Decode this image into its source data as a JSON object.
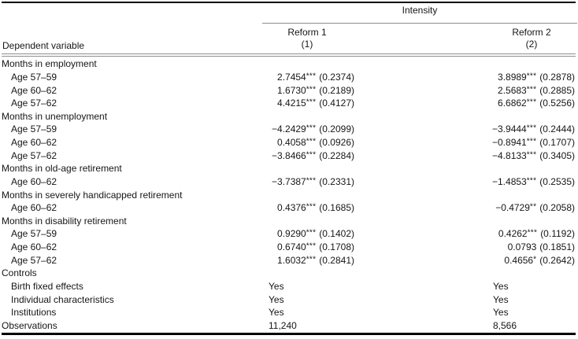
{
  "colors": {
    "rule_dark": "#000000",
    "rule_gray": "#8e8e8e",
    "text": "#161616"
  },
  "header": {
    "intensity_label": "Intensity",
    "dependent_variable_label": "Dependent variable",
    "columns": [
      {
        "name": "Reform 1",
        "number": "(1)"
      },
      {
        "name": "Reform 2",
        "number": "(2)"
      }
    ]
  },
  "rows": [
    {
      "type": "section",
      "label": "Months in employment"
    },
    {
      "type": "data",
      "label": "Age 57–59",
      "r1": {
        "coef": "2.7454",
        "stars": "***",
        "se": "(0.2374)"
      },
      "r2": {
        "coef": "3.8989",
        "stars": "***",
        "se": "(0.2878)"
      }
    },
    {
      "type": "data",
      "label": "Age 60–62",
      "r1": {
        "coef": "1.6730",
        "stars": "***",
        "se": "(0.2189)"
      },
      "r2": {
        "coef": "2.5683",
        "stars": "***",
        "se": "(0.2885)"
      }
    },
    {
      "type": "data",
      "label": "Age 57–62",
      "r1": {
        "coef": "4.4215",
        "stars": "***",
        "se": "(0.4127)"
      },
      "r2": {
        "coef": "6.6862",
        "stars": "***",
        "se": "(0.5256)"
      }
    },
    {
      "type": "section",
      "label": "Months in unemployment"
    },
    {
      "type": "data",
      "label": "Age 57–59",
      "r1": {
        "coef": "−4.2429",
        "stars": "***",
        "se": "(0.2099)"
      },
      "r2": {
        "coef": "−3.9444",
        "stars": "***",
        "se": "(0.2444)"
      }
    },
    {
      "type": "data",
      "label": "Age 60–62",
      "r1": {
        "coef": "0.4058",
        "stars": "***",
        "se": "(0.0926)"
      },
      "r2": {
        "coef": "−0.8941",
        "stars": "***",
        "se": "(0.1707)"
      }
    },
    {
      "type": "data",
      "label": "Age 57–62",
      "r1": {
        "coef": "−3.8466",
        "stars": "***",
        "se": "(0.2284)"
      },
      "r2": {
        "coef": "−4.8133",
        "stars": "***",
        "se": "(0.3405)"
      }
    },
    {
      "type": "section",
      "label": "Months in old-age retirement"
    },
    {
      "type": "data",
      "label": "Age 60–62",
      "r1": {
        "coef": "−3.7387",
        "stars": "***",
        "se": "(0.2331)"
      },
      "r2": {
        "coef": "−1.4853",
        "stars": "***",
        "se": "(0.2535)"
      }
    },
    {
      "type": "section",
      "label": "Months in severely handicapped retirement"
    },
    {
      "type": "data",
      "label": "Age 60–62",
      "r1": {
        "coef": "0.4376",
        "stars": "***",
        "se": "(0.1685)"
      },
      "r2": {
        "coef": "−0.4729",
        "stars": "**",
        "se": "(0.2058)"
      }
    },
    {
      "type": "section",
      "label": "Months in disability retirement"
    },
    {
      "type": "data",
      "label": "Age 57–59",
      "r1": {
        "coef": "0.9290",
        "stars": "***",
        "se": "(0.1402)"
      },
      "r2": {
        "coef": "0.4262",
        "stars": "***",
        "se": "(0.1192)"
      }
    },
    {
      "type": "data",
      "label": "Age 60–62",
      "r1": {
        "coef": "0.6740",
        "stars": "***",
        "se": "(0.1708)"
      },
      "r2": {
        "coef": "0.0793",
        "stars": "",
        "se": "(0.1851)"
      }
    },
    {
      "type": "data",
      "label": "Age 57–62",
      "r1": {
        "coef": "1.6032",
        "stars": "***",
        "se": "(0.2841)"
      },
      "r2": {
        "coef": "0.4656",
        "stars": "*",
        "se": "(0.2642)"
      }
    },
    {
      "type": "section",
      "label": "Controls"
    },
    {
      "type": "control",
      "label": "Birth fixed effects",
      "r1": {
        "text": "Yes"
      },
      "r2": {
        "text": "Yes"
      }
    },
    {
      "type": "control",
      "label": "Individual characteristics",
      "r1": {
        "text": "Yes"
      },
      "r2": {
        "text": "Yes"
      }
    },
    {
      "type": "control",
      "label": "Institutions",
      "r1": {
        "text": "Yes"
      },
      "r2": {
        "text": "Yes"
      }
    },
    {
      "type": "obs",
      "label": "Observations",
      "r1": {
        "text": "11,240"
      },
      "r2": {
        "text": "8,566"
      }
    }
  ]
}
